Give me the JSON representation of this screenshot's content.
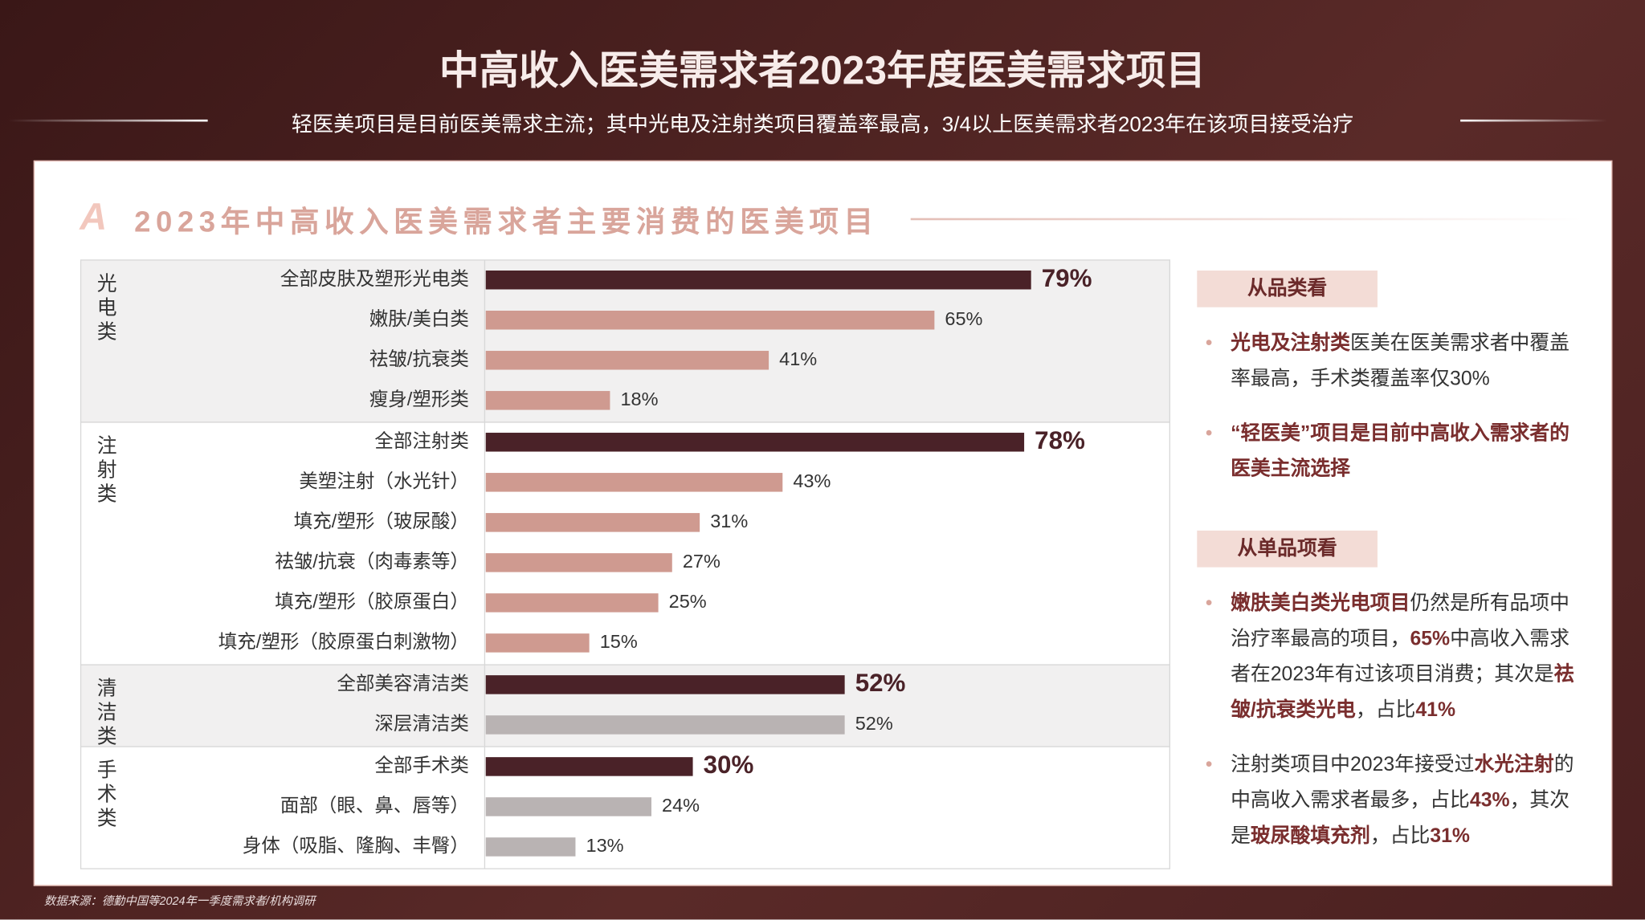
{
  "title": "中高收入医美需求者2023年度医美需求项目",
  "subtitle": "轻医美项目是目前医美需求主流；其中光电及注射类项目覆盖率最高，3/4以上医美需求者2023年在该项目接受治疗",
  "section_title": "2023年中高收入医美需求者主要消费的医美项目",
  "chart_data": {
    "type": "bar",
    "orientation": "horizontal",
    "groups": [
      {
        "name": "光电类",
        "categories": [
          "全部皮肤及塑形光电类",
          "嫩肤/美白类",
          "祛皱/抗衰类",
          "瘦身/塑形类"
        ],
        "values": [
          79,
          65,
          41,
          18
        ],
        "value_labels": [
          "79%",
          "65%",
          "41%",
          "18%"
        ],
        "colors": [
          "#4a2228",
          "#cf9a90",
          "#cf9a90",
          "#cf9a90"
        ]
      },
      {
        "name": "注射类",
        "categories": [
          "全部注射类",
          "美塑注射（水光针）",
          "填充/塑形（玻尿酸）",
          "祛皱/抗衰（肉毒素等）",
          "填充/塑形（胶原蛋白）",
          "填充/塑形（胶原蛋白刺激物）"
        ],
        "values": [
          78,
          43,
          31,
          27,
          25,
          15
        ],
        "value_labels": [
          "78%",
          "43%",
          "31%",
          "27%",
          "25%",
          "15%"
        ],
        "colors": [
          "#4a2228",
          "#cf9a90",
          "#cf9a90",
          "#cf9a90",
          "#cf9a90",
          "#cf9a90"
        ]
      },
      {
        "name": "清洁类",
        "categories": [
          "全部美容清洁类",
          "深层清洁类"
        ],
        "values": [
          52,
          52
        ],
        "value_labels": [
          "52%",
          "52%"
        ],
        "colors": [
          "#4a2228",
          "#b9b3b3"
        ]
      },
      {
        "name": "手术类",
        "categories": [
          "全部手术类",
          "面部（眼、鼻、唇等）",
          "身体（吸脂、隆胸、丰臀）"
        ],
        "values": [
          30,
          24,
          13
        ],
        "value_labels": [
          "30%",
          "24%",
          "13%"
        ],
        "colors": [
          "#4a2228",
          "#b9b3b3",
          "#b9b3b3"
        ]
      }
    ]
  },
  "notes": [
    {
      "heading": "从品类看",
      "bullets": [
        [
          {
            "text": "光电及注射类",
            "bold": true
          },
          {
            "text": "医美在医美需求者中覆盖率最高，手术类覆盖率仅30%"
          }
        ],
        [
          {
            "text": "“轻医美”项目是目前中高收入需求者的医美主流选择",
            "bold": true
          }
        ]
      ]
    },
    {
      "heading": "从单品项看",
      "bullets": [
        [
          {
            "text": "嫩肤美白类光电项目",
            "bold": true
          },
          {
            "text": "仍然是所有品项中治疗率最高的项目，"
          },
          {
            "text": "65%",
            "bold": true
          },
          {
            "text": "中高收入需求者在2023年有过该项目消费；其次是"
          },
          {
            "text": "祛皱/抗衰类光电",
            "bold": true
          },
          {
            "text": "，占比"
          },
          {
            "text": "41%",
            "bold": true
          }
        ],
        [
          {
            "text": "注射类项目中2023年接受过"
          },
          {
            "text": "水光注射",
            "bold": true
          },
          {
            "text": "的中高收入需求者最多，占比"
          },
          {
            "text": "43%",
            "bold": true
          },
          {
            "text": "，其次是"
          },
          {
            "text": "玻尿酸填充剂",
            "bold": true
          },
          {
            "text": "，占比"
          },
          {
            "text": "31%",
            "bold": true
          }
        ]
      ]
    }
  ],
  "source": "数据来源：德勤中国等2024年一季度需求者/机构调研"
}
